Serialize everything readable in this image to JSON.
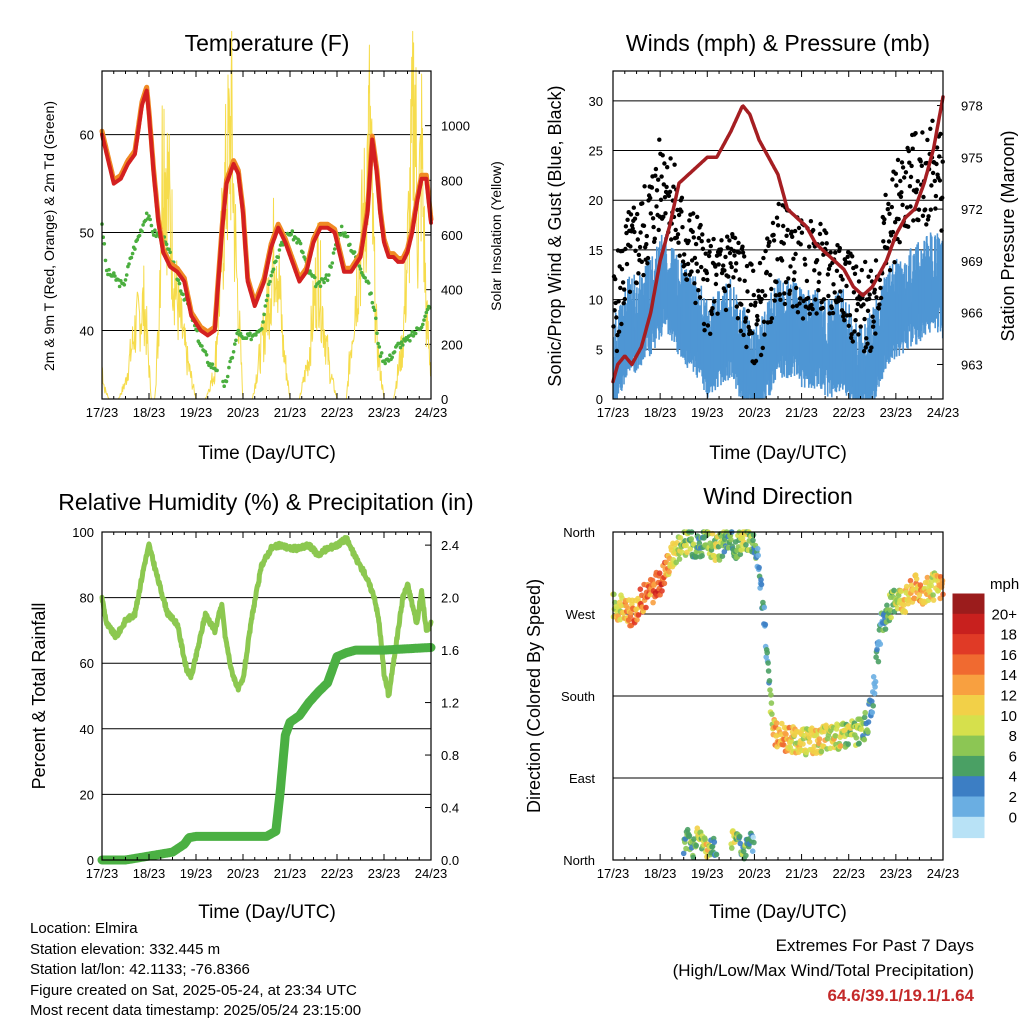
{
  "info": {
    "location": "Location: Elmira",
    "elevation": "Station elevation: 332.445 m",
    "latlon": "Station lat/lon: 42.1133; -76.8366",
    "created": "Figure created on Sat, 2025-05-24, at 23:34 UTC",
    "latest": "Most recent data timestamp: 2025/05/24 23:15:00"
  },
  "extremes": {
    "title": "Extremes For Past 7 Days",
    "subtitle": "(High/Low/Max Wind/Total Precipitation)",
    "values": "64.6/39.1/19.1/1.64"
  },
  "colors": {
    "red": "#d42020",
    "orange": "#f08a24",
    "green": "#4aae3e",
    "yellow": "#f6dc4c",
    "black": "#000000",
    "blue": "#4f96d4",
    "maroon": "#a51e22",
    "rh": "#8cc850",
    "precip": "#4bb043"
  },
  "wind_colorbar": {
    "unit": "mph",
    "labels": [
      "20+",
      "18",
      "16",
      "14",
      "12",
      "10",
      "8",
      "6",
      "4",
      "2",
      "0"
    ],
    "colors": [
      "#9b1c1c",
      "#c8201e",
      "#e03a26",
      "#f06a30",
      "#f8a040",
      "#f2d048",
      "#d6e04c",
      "#8cc654",
      "#4aa064",
      "#3c7ec4",
      "#6aaee2",
      "#b8e2f6"
    ]
  },
  "chart_data": [
    {
      "type": "line",
      "title": "Temperature (F)",
      "xlabel": "Time (Day/UTC)",
      "ylabel": "2m & 9m T (Red, Orange) & 2m Td (Green)",
      "y2label": "Solar Insolation (Yellow)",
      "x_ticks": [
        "17/23",
        "18/23",
        "19/23",
        "20/23",
        "21/23",
        "22/23",
        "23/23",
        "24/23"
      ],
      "xlim": [
        0,
        7
      ],
      "ylim": [
        33,
        66.5
      ],
      "y_ticks": [
        40,
        50,
        60
      ],
      "y2lim": [
        0,
        1200
      ],
      "y2_ticks": [
        0,
        200,
        400,
        600,
        800,
        1000
      ],
      "grid": "y",
      "series": [
        {
          "kind": "temperature_2m_9m",
          "x": [
            0,
            0.1,
            0.25,
            0.4,
            0.55,
            0.7,
            0.85,
            0.95,
            1.0,
            1.1,
            1.2,
            1.3,
            1.45,
            1.6,
            1.75,
            1.9,
            2.1,
            2.25,
            2.4,
            2.55,
            2.65,
            2.8,
            2.9,
            3.0,
            3.1,
            3.25,
            3.45,
            3.6,
            3.75,
            3.9,
            4.05,
            4.2,
            4.35,
            4.5,
            4.65,
            4.8,
            4.95,
            5.05,
            5.15,
            5.3,
            5.5,
            5.65,
            5.75,
            5.85,
            5.92,
            6.0,
            6.1,
            6.2,
            6.3,
            6.4,
            6.5,
            6.6,
            6.7,
            6.8,
            6.9,
            7.0
          ],
          "values": [
            60,
            58,
            55,
            55.5,
            57,
            58,
            63,
            64.5,
            62,
            56,
            51,
            48,
            46.5,
            46,
            45,
            41.5,
            40,
            39.5,
            40,
            50,
            55,
            57,
            56,
            52,
            45,
            42.5,
            45,
            48.5,
            50.5,
            49,
            47,
            45,
            46,
            49,
            50.5,
            50.5,
            50,
            48,
            46,
            46,
            47.5,
            52,
            59.5,
            56,
            52,
            49,
            47.5,
            47.5,
            47,
            47,
            48,
            50,
            53,
            55.5,
            55.5,
            51
          ]
        },
        {
          "kind": "dewpoint_2m",
          "x": [
            0,
            0.1,
            0.25,
            0.45,
            0.65,
            0.85,
            0.95,
            1.1,
            1.3,
            1.5,
            1.7,
            1.85,
            2.0,
            2.1,
            2.3,
            2.5,
            2.6,
            2.75,
            2.9,
            3.0,
            3.2,
            3.4,
            3.6,
            3.8,
            4.0,
            4.2,
            4.4,
            4.6,
            4.8,
            5.0,
            5.1,
            5.3,
            5.5,
            5.65,
            5.8,
            5.9,
            6.0,
            6.1,
            6.3,
            6.5,
            6.7,
            6.85,
            7.0
          ],
          "values": [
            51,
            46,
            45.5,
            44.5,
            48,
            50.5,
            52,
            50,
            49.5,
            47,
            44,
            42.5,
            40,
            38.5,
            36.5,
            36,
            34,
            37,
            40,
            39,
            39.5,
            40.5,
            46,
            48.5,
            50,
            49,
            46,
            44.5,
            45.5,
            49,
            50.5,
            48.5,
            46.5,
            45,
            42,
            38,
            37,
            37,
            38.5,
            39,
            40,
            41,
            43
          ]
        },
        {
          "kind": "solar_insolation",
          "x": [
            0,
            0.05,
            0.15,
            0.35,
            0.5,
            0.7,
            0.9,
            1.0,
            1.05,
            1.12,
            1.2,
            1.3,
            1.45,
            1.6,
            1.8,
            2.0,
            2.05,
            2.2,
            2.4,
            2.6,
            2.75,
            2.85,
            3.0,
            3.05,
            3.2,
            3.35,
            3.5,
            3.7,
            3.85,
            4.0,
            4.05,
            4.2,
            4.4,
            4.6,
            4.7,
            4.85,
            5.0,
            5.05,
            5.2,
            5.4,
            5.6,
            5.7,
            5.78,
            5.85,
            6.0,
            6.05,
            6.2,
            6.4,
            6.55,
            6.65,
            6.72,
            6.8,
            6.9,
            7.0
          ],
          "values": [
            120,
            40,
            0,
            0,
            60,
            250,
            350,
            120,
            0,
            0,
            250,
            1000,
            650,
            350,
            150,
            0,
            0,
            0,
            100,
            700,
            1000,
            500,
            0,
            0,
            0,
            150,
            300,
            600,
            200,
            0,
            0,
            0,
            150,
            500,
            300,
            100,
            0,
            0,
            0,
            400,
            700,
            1000,
            500,
            200,
            0,
            0,
            0,
            200,
            700,
            1150,
            600,
            900,
            300,
            100
          ]
        }
      ]
    },
    {
      "type": "scatter",
      "title": "Winds (mph) & Pressure (mb)",
      "xlabel": "Time (Day/UTC)",
      "ylabel": "Sonic/Prop Wind & Gust (Blue, Black)",
      "y2label": "Station Pressure (Maroon)",
      "x_ticks": [
        "17/23",
        "18/23",
        "19/23",
        "20/23",
        "21/23",
        "22/23",
        "23/23",
        "24/23"
      ],
      "xlim": [
        0,
        7
      ],
      "ylim": [
        0,
        33
      ],
      "y_ticks": [
        0,
        5,
        10,
        15,
        20,
        25,
        30
      ],
      "y2lim": [
        961,
        980
      ],
      "y2_ticks": [
        963,
        966,
        969,
        972,
        975,
        978
      ],
      "grid": "y",
      "series": [
        {
          "kind": "gust",
          "x": [
            0,
            0.3,
            0.6,
            0.9,
            1.1,
            1.4,
            1.6,
            1.8,
            2.0,
            2.3,
            2.5,
            2.8,
            3.0,
            3.2,
            3.5,
            3.8,
            4.0,
            4.3,
            4.6,
            4.9,
            5.2,
            5.5,
            5.8,
            6.0,
            6.3,
            6.6,
            6.8,
            7.0
          ],
          "values": [
            8,
            14,
            16,
            20,
            23,
            17,
            15,
            14,
            11,
            12,
            14,
            10,
            8,
            10,
            15,
            14,
            13,
            13,
            12,
            13,
            8,
            10,
            16,
            19,
            22,
            22,
            24,
            21
          ]
        },
        {
          "kind": "wind",
          "x": [
            0,
            0.3,
            0.6,
            0.9,
            1.1,
            1.4,
            1.6,
            1.8,
            2.0,
            2.3,
            2.5,
            2.8,
            3.0,
            3.2,
            3.5,
            3.8,
            4.0,
            4.3,
            4.6,
            4.9,
            5.2,
            5.5,
            5.8,
            6.0,
            6.3,
            6.6,
            6.8,
            7.0
          ],
          "values": [
            4,
            8,
            9,
            11,
            13,
            10,
            9,
            8,
            6,
            7,
            8,
            5,
            3,
            5,
            8,
            8,
            7,
            7,
            6,
            7,
            3,
            5,
            9,
            10,
            11,
            12,
            13,
            12
          ]
        },
        {
          "kind": "pressure",
          "x": [
            0,
            0.1,
            0.25,
            0.4,
            0.6,
            0.8,
            1.0,
            1.2,
            1.4,
            1.6,
            1.8,
            2.0,
            2.2,
            2.5,
            2.75,
            2.9,
            3.1,
            3.3,
            3.5,
            3.7,
            3.9,
            4.1,
            4.3,
            4.5,
            4.7,
            4.9,
            5.1,
            5.3,
            5.5,
            5.8,
            6.0,
            6.2,
            6.4,
            6.6,
            6.8,
            6.9,
            7.0
          ],
          "values": [
            962,
            963,
            963.5,
            963,
            964,
            966,
            969,
            971,
            973.5,
            974,
            974.5,
            975,
            975,
            976.5,
            978,
            977.5,
            976,
            975,
            974,
            972,
            971.5,
            971,
            970,
            969.5,
            969,
            968.5,
            967.5,
            967,
            967.5,
            969,
            970.5,
            971.5,
            972,
            973.5,
            975.5,
            977,
            978.5
          ]
        }
      ]
    },
    {
      "type": "line",
      "title": "Relative Humidity (%) & Precipitation (in)",
      "xlabel": "Time (Day/UTC)",
      "ylabel": "Percent & Total Rainfall",
      "x_ticks": [
        "17/23",
        "18/23",
        "19/23",
        "20/23",
        "21/23",
        "22/23",
        "23/23",
        "24/23"
      ],
      "xlim": [
        0,
        7
      ],
      "ylim": [
        0,
        100
      ],
      "y_ticks": [
        0,
        20,
        40,
        60,
        80,
        100
      ],
      "y2lim": [
        0,
        2.5
      ],
      "y2_ticks": [
        "0.0",
        "0.4",
        "0.8",
        "1.2",
        "1.6",
        "2.0",
        "2.4"
      ],
      "grid": "y",
      "series": [
        {
          "kind": "relative_humidity",
          "x": [
            0,
            0.1,
            0.3,
            0.5,
            0.7,
            0.9,
            1.0,
            1.2,
            1.4,
            1.6,
            1.8,
            1.9,
            2.0,
            2.2,
            2.4,
            2.55,
            2.6,
            2.75,
            2.9,
            3.0,
            3.2,
            3.4,
            3.6,
            3.8,
            4.0,
            4.2,
            4.4,
            4.6,
            4.8,
            5.0,
            5.2,
            5.4,
            5.6,
            5.8,
            5.9,
            6.0,
            6.1,
            6.2,
            6.3,
            6.4,
            6.5,
            6.6,
            6.7,
            6.8,
            6.9,
            7.0
          ],
          "values": [
            80,
            72,
            68,
            73,
            75,
            90,
            96,
            85,
            75,
            72,
            58,
            56,
            62,
            75,
            70,
            78,
            70,
            58,
            52,
            55,
            75,
            90,
            95,
            96,
            95,
            95,
            96,
            93,
            95,
            96,
            98,
            92,
            87,
            80,
            72,
            57,
            50,
            60,
            70,
            80,
            84,
            78,
            72,
            82,
            70,
            72
          ]
        },
        {
          "kind": "total_precipitation",
          "x": [
            0,
            0.5,
            1.0,
            1.5,
            1.75,
            1.85,
            2.0,
            2.5,
            3.0,
            3.5,
            3.7,
            3.8,
            3.9,
            4.0,
            4.2,
            4.4,
            4.6,
            4.8,
            4.9,
            5.0,
            5.2,
            5.4,
            6.0,
            6.5,
            7.0
          ],
          "values": [
            0.0,
            0.0,
            0.03,
            0.06,
            0.12,
            0.17,
            0.18,
            0.18,
            0.18,
            0.18,
            0.22,
            0.55,
            0.95,
            1.05,
            1.1,
            1.2,
            1.28,
            1.35,
            1.45,
            1.55,
            1.58,
            1.6,
            1.6,
            1.61,
            1.62
          ]
        }
      ]
    },
    {
      "type": "scatter",
      "title": "Wind Direction",
      "xlabel": "Time (Day/UTC)",
      "ylabel": "Direction (Colored By Speed)",
      "x_ticks": [
        "17/23",
        "18/23",
        "19/23",
        "20/23",
        "21/23",
        "22/23",
        "23/23",
        "24/23"
      ],
      "xlim": [
        0,
        7
      ],
      "ylim": [
        0,
        360
      ],
      "y_ticks": [
        "North",
        "East",
        "South",
        "West",
        "North"
      ],
      "y_tick_values": [
        0,
        90,
        180,
        270,
        360
      ],
      "grid": "y",
      "series": [
        {
          "kind": "direction",
          "x": [
            0,
            0.2,
            0.4,
            0.6,
            0.8,
            1.0,
            1.2,
            1.4,
            1.6,
            1.8,
            2.0,
            2.2,
            2.4,
            2.6,
            2.8,
            3.0,
            3.1,
            3.2,
            3.3,
            3.4,
            3.6,
            3.8,
            4.0,
            4.2,
            4.4,
            4.6,
            4.8,
            5.0,
            5.2,
            5.4,
            5.5,
            5.6,
            5.7,
            5.8,
            6.0,
            6.2,
            6.4,
            6.6,
            6.8,
            7.0
          ],
          "values": [
            280,
            275,
            270,
            285,
            295,
            305,
            330,
            345,
            350,
            345,
            350,
            340,
            350,
            345,
            355,
            350,
            320,
            270,
            200,
            140,
            135,
            132,
            130,
            130,
            132,
            135,
            135,
            140,
            140,
            150,
            175,
            220,
            260,
            270,
            290,
            285,
            300,
            295,
            300,
            300
          ],
          "speeds": [
            10,
            12,
            14,
            16,
            15,
            18,
            12,
            10,
            8,
            6,
            8,
            10,
            6,
            8,
            10,
            6,
            4,
            3,
            6,
            12,
            14,
            12,
            10,
            10,
            12,
            10,
            11,
            9,
            8,
            6,
            4,
            4,
            5,
            6,
            9,
            12,
            14,
            12,
            11,
            14
          ]
        },
        {
          "kind": "direction_north_wrap",
          "x": [
            1.5,
            1.6,
            1.7,
            1.8,
            1.9,
            2.0,
            2.1,
            2.2,
            2.5,
            2.6,
            2.7,
            2.8,
            2.9,
            3.0
          ],
          "values": [
            15,
            25,
            10,
            30,
            20,
            8,
            18,
            12,
            20,
            30,
            15,
            10,
            25,
            12
          ],
          "speeds": [
            6,
            8,
            6,
            10,
            8,
            12,
            4,
            6,
            8,
            10,
            6,
            8,
            4,
            2
          ]
        }
      ]
    }
  ]
}
